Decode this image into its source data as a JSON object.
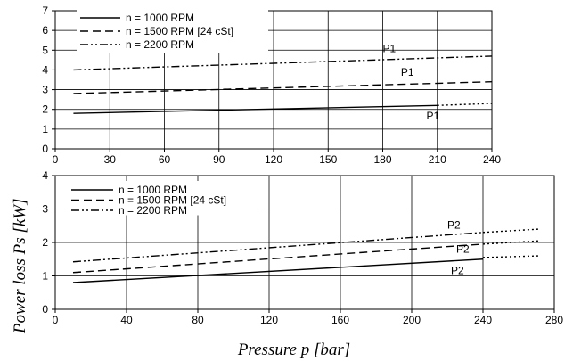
{
  "y_axis_label": "Power loss Ps [kW]",
  "x_axis_label": "Pressure p [bar]",
  "chart_data": [
    {
      "type": "line",
      "title": "",
      "xlabel": "",
      "ylabel": "",
      "xlim": [
        0,
        240
      ],
      "ylim": [
        0,
        7
      ],
      "x_ticks": [
        "0",
        "30",
        "60",
        "90",
        "120",
        "150",
        "180",
        "210",
        "240"
      ],
      "y_ticks": [
        "0",
        "1",
        "2",
        "3",
        "4",
        "5",
        "6",
        "7"
      ],
      "grid": true,
      "legend_position": "top-left",
      "series": [
        {
          "name": "n = 1000 RPM",
          "dash": "solid",
          "x": [
            10,
            210
          ],
          "y": [
            1.8,
            2.2
          ]
        },
        {
          "name": "n = 1500 RPM [24 cSt]",
          "dash": "dash",
          "x": [
            10,
            240
          ],
          "y": [
            2.8,
            3.4
          ]
        },
        {
          "name": "n = 2200 RPM",
          "dash": "dashdotdot",
          "x": [
            10,
            240
          ],
          "y": [
            4.0,
            4.7
          ]
        }
      ],
      "extensions": [
        {
          "x": [
            210,
            240
          ],
          "y": [
            2.2,
            2.3
          ]
        }
      ],
      "annotations": [
        {
          "text": "P1",
          "x": 180,
          "y": 4.9
        },
        {
          "text": "P1",
          "x": 190,
          "y": 3.7
        },
        {
          "text": "P1",
          "x": 204,
          "y": 1.5
        }
      ]
    },
    {
      "type": "line",
      "title": "",
      "xlabel": "Pressure p [bar]",
      "ylabel": "",
      "xlim": [
        0,
        280
      ],
      "ylim": [
        0,
        4
      ],
      "x_ticks": [
        "0",
        "40",
        "80",
        "120",
        "160",
        "200",
        "240",
        "280"
      ],
      "y_ticks": [
        "0",
        "1",
        "2",
        "3",
        "4"
      ],
      "grid": true,
      "legend_position": "top-left",
      "series": [
        {
          "name": "n = 1000 RPM",
          "dash": "solid",
          "x": [
            10,
            240
          ],
          "y": [
            0.8,
            1.5
          ]
        },
        {
          "name": "n = 1500 RPM [24 cSt]",
          "dash": "dash",
          "x": [
            10,
            240
          ],
          "y": [
            1.1,
            1.95
          ]
        },
        {
          "name": "n = 2200 RPM",
          "dash": "dashdotdot",
          "x": [
            10,
            240
          ],
          "y": [
            1.42,
            2.3
          ]
        }
      ],
      "extensions": [
        {
          "x": [
            240,
            272
          ],
          "y": [
            1.55,
            1.6
          ]
        },
        {
          "x": [
            240,
            272
          ],
          "y": [
            1.95,
            2.05
          ]
        },
        {
          "x": [
            240,
            272
          ],
          "y": [
            2.3,
            2.4
          ]
        }
      ],
      "annotations": [
        {
          "text": "P2",
          "x": 220,
          "y": 2.42
        },
        {
          "text": "P2",
          "x": 225,
          "y": 1.7
        },
        {
          "text": "P2",
          "x": 222,
          "y": 1.05
        }
      ]
    }
  ]
}
